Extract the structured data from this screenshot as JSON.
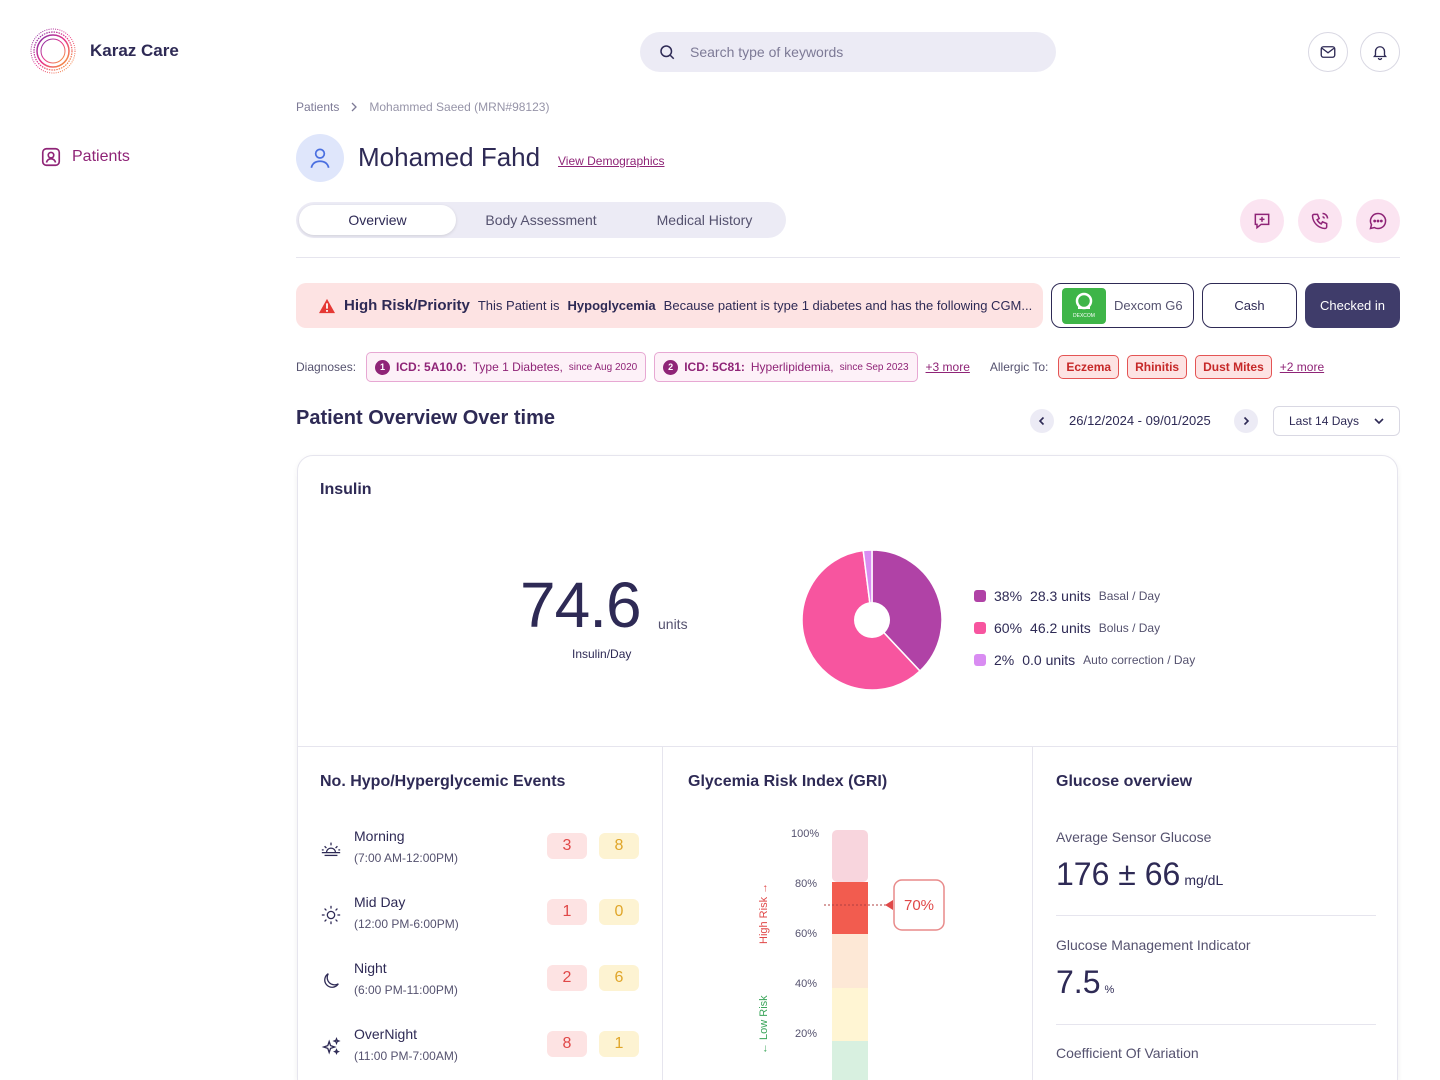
{
  "app": {
    "name": "Karaz Care"
  },
  "search": {
    "placeholder": "Search type of keywords"
  },
  "sidebar": {
    "items": [
      {
        "label": "Patients"
      }
    ]
  },
  "breadcrumb": {
    "root": "Patients",
    "current": "Mohammed Saeed (MRN#98123)"
  },
  "patient": {
    "name": "Mohamed Fahd",
    "demographics_link": "View Demographics"
  },
  "tabs": [
    {
      "label": "Overview",
      "active": true
    },
    {
      "label": "Body Assessment"
    },
    {
      "label": "Medical History"
    }
  ],
  "alert": {
    "title": "High Risk/Priority",
    "text_prefix": "This Patient is",
    "condition": "Hypoglycemia",
    "text_suffix": "Because patient is type 1 diabetes and has the following CGM..."
  },
  "device": {
    "name": "Dexcom G6",
    "logo_text": "DEXCOM"
  },
  "payment": "Cash",
  "status": "Checked in",
  "diagnoses": {
    "label": "Diagnoses:",
    "items": [
      {
        "num": "1",
        "code": "ICD: 5A10.0:",
        "name": "Type 1 Diabetes,",
        "since": "since Aug 2020"
      },
      {
        "num": "2",
        "code": "ICD: 5C81:",
        "name": "Hyperlipidemia,",
        "since": "since Sep 2023"
      }
    ],
    "more": "+3 more"
  },
  "allergies": {
    "label": "Allergic To:",
    "items": [
      "Eczema",
      "Rhinitis",
      "Dust Mites"
    ],
    "more": "+2 more"
  },
  "overview": {
    "title": "Patient Overview Over time",
    "date_range": "26/12/2024 - 09/01/2025",
    "period": "Last 14 Days"
  },
  "insulin": {
    "title": "Insulin",
    "total": "74.6",
    "units": "units",
    "sub": "Insulin/Day",
    "legend": [
      {
        "pct": "38%",
        "amount": "28.3 units",
        "desc": "Basal / Day",
        "color": "#b042a6"
      },
      {
        "pct": "60%",
        "amount": "46.2 units",
        "desc": "Bolus / Day",
        "color": "#f7559f"
      },
      {
        "pct": "2%",
        "amount": "0.0 units",
        "desc": "Auto correction / Day",
        "color": "#d98cf2"
      }
    ]
  },
  "chart_data": {
    "type": "pie",
    "categories": [
      "Basal / Day",
      "Bolus / Day",
      "Auto correction / Day"
    ],
    "values": [
      38,
      60,
      2
    ],
    "title": "Insulin"
  },
  "events": {
    "title": "No. Hypo/Hyperglycemic Events",
    "rows": [
      {
        "name": "Morning",
        "time": "(7:00 AM-12:00PM)",
        "hypo": "3",
        "hyper": "8",
        "icon": "sunrise-icon"
      },
      {
        "name": "Mid Day",
        "time": "(12:00 PM-6:00PM)",
        "hypo": "1",
        "hyper": "0",
        "icon": "sun-icon"
      },
      {
        "name": "Night",
        "time": "(6:00 PM-11:00PM)",
        "hypo": "2",
        "hyper": "6",
        "icon": "moon-icon"
      },
      {
        "name": "OverNight",
        "time": "(11:00 PM-7:00AM)",
        "hypo": "8",
        "hyper": "1",
        "icon": "sparkles-icon"
      }
    ]
  },
  "gri": {
    "title": "Glycemia Risk Index (GRI)",
    "value": "70%",
    "value_num": 70,
    "ticks": [
      "100%",
      "80%",
      "60%",
      "40%",
      "20%"
    ],
    "high_label": "High Risk",
    "low_label": "Low Risk"
  },
  "glucose": {
    "title": "Glucose overview",
    "avg_label": "Average Sensor Glucose",
    "avg_value": "176 ± 66",
    "avg_unit": "mg/dL",
    "gmi_label": "Glucose Management Indicator",
    "gmi_value": "7.5",
    "gmi_unit": "%",
    "cv_label": "Coefficient Of Variation"
  }
}
